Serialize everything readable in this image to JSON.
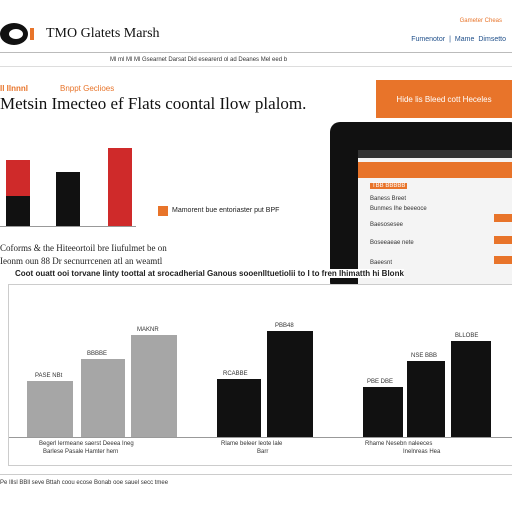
{
  "header": {
    "logo": "TMO Glatets Marsh",
    "top_link": "Gameter Cheas",
    "nav": [
      "Fumenotor",
      "Mame",
      "Dimsetto"
    ],
    "strip": "Ml ml Ml Ml Gsearnet Darsat Did esearerd ol ad Deanes Mel eed b"
  },
  "hero": {
    "kicker": "Il Ilnnnl",
    "kicker_note": "Bnppt Geclioes",
    "headline": "Metsin Imecteo ef Flats coontal Ilow plalom.",
    "button": "Hide lis Bleed cott Heceles",
    "legend": "Mamorent bue entoriaster put BPF",
    "paragraph": [
      "Coforms & the Hiteeortoil bre Iiufulmet be on",
      "Ieonm oun 88 Dr secnurrcenen atl an weamtl"
    ]
  },
  "tablet": {
    "header": "TBB BBBBB",
    "rows": [
      "Baness Breet",
      "Bunmes Ihe beeeoce",
      "Baesosesee",
      "Boseeaeae nete",
      "Baeesnt"
    ]
  },
  "chart": {
    "title": "Coot ouatt ooi torvane Iinty toottal at srocadherial Ganous sooenlltuetiolii to I to fren Ihimatth hi Blonk",
    "bar_labels": [
      "PASE NBt",
      "BBBBE",
      "MAKNR",
      "RCABBE",
      "PBB48",
      "PBE DBE",
      "NSE BBB",
      "BLLOBE"
    ],
    "groups": [
      [
        "Begerl lermeane saerst Deeea Ineg",
        "Barlese Pasale Hamter hern"
      ],
      [
        "Rlame beleer leote lale",
        "Barr"
      ],
      [
        "Rhame Nesebn naleeces",
        "Inelnreas Hea"
      ]
    ]
  },
  "footer": "Pe Illsl BBll seve Bttah coou ecose Bonab ooe sauel secc tmee"
}
